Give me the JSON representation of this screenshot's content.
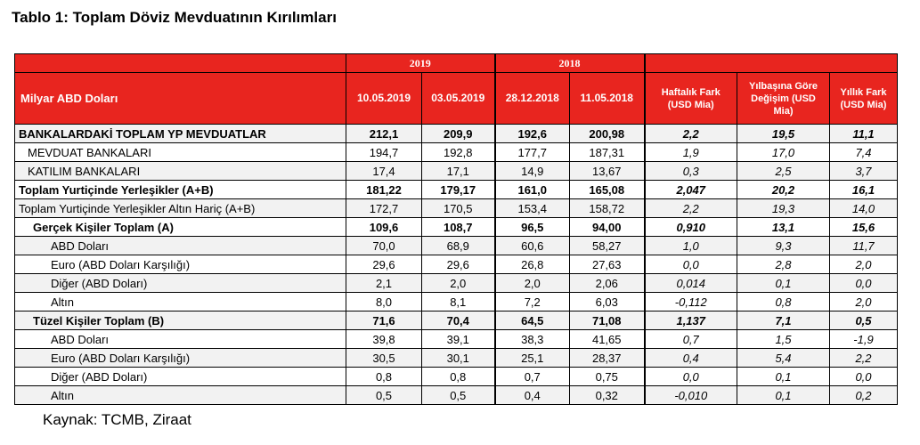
{
  "title": "Tablo 1: Toplam Döviz Mevduatının Kırılımları",
  "source": "Kaynak: TCMB, Ziraat",
  "header": {
    "unit_label": "Milyar ABD Doları",
    "year_2019": "2019",
    "year_2018": "2018",
    "dates": [
      "10.05.2019",
      "03.05.2019",
      "28.12.2018",
      "11.05.2018"
    ],
    "weekly": "Haftalık Fark (USD Mia)",
    "ytd": "Yılbaşına Göre Değişim (USD Mia)",
    "yearly": "Yıllık Fark (USD Mia)"
  },
  "rows": [
    {
      "label": "BANKALARDAKİ TOPLAM YP MEVDUATLAR",
      "values": [
        "212,1",
        "209,9",
        "192,6",
        "200,98"
      ],
      "changes": [
        "2,2",
        "19,5",
        "11,1"
      ],
      "bold": true,
      "indent": 0
    },
    {
      "label": "MEVDUAT BANKALARI",
      "values": [
        "194,7",
        "192,8",
        "177,7",
        "187,31"
      ],
      "changes": [
        "1,9",
        "17,0",
        "7,4"
      ],
      "bold": false,
      "indent": 1
    },
    {
      "label": "KATILIM BANKALARI",
      "values": [
        "17,4",
        "17,1",
        "14,9",
        "13,67"
      ],
      "changes": [
        "0,3",
        "2,5",
        "3,7"
      ],
      "bold": false,
      "indent": 1
    },
    {
      "label": "Toplam Yurtiçinde Yerleşikler (A+B)",
      "values": [
        "181,22",
        "179,17",
        "161,0",
        "165,08"
      ],
      "changes": [
        "2,047",
        "20,2",
        "16,1"
      ],
      "bold": true,
      "indent": 0
    },
    {
      "label": "Toplam Yurtiçinde Yerleşikler Altın Hariç (A+B)",
      "values": [
        "172,7",
        "170,5",
        "153,4",
        "158,72"
      ],
      "changes": [
        "2,2",
        "19,3",
        "14,0"
      ],
      "bold": false,
      "indent": 0
    },
    {
      "label": "Gerçek Kişiler Toplam (A)",
      "values": [
        "109,6",
        "108,7",
        "96,5",
        "94,00"
      ],
      "changes": [
        "0,910",
        "13,1",
        "15,6"
      ],
      "bold": true,
      "indent": 2
    },
    {
      "label": "ABD Doları",
      "values": [
        "70,0",
        "68,9",
        "60,6",
        "58,27"
      ],
      "changes": [
        "1,0",
        "9,3",
        "11,7"
      ],
      "bold": false,
      "indent": 3
    },
    {
      "label": "Euro (ABD Doları Karşılığı)",
      "values": [
        "29,6",
        "29,6",
        "26,8",
        "27,63"
      ],
      "changes": [
        "0,0",
        "2,8",
        "2,0"
      ],
      "bold": false,
      "indent": 3
    },
    {
      "label": "Diğer (ABD Doları)",
      "values": [
        "2,1",
        "2,0",
        "2,0",
        "2,06"
      ],
      "changes": [
        "0,014",
        "0,1",
        "0,0"
      ],
      "bold": false,
      "indent": 3
    },
    {
      "label": "Altın",
      "values": [
        "8,0",
        "8,1",
        "7,2",
        "6,03"
      ],
      "changes": [
        "-0,112",
        "0,8",
        "2,0"
      ],
      "bold": false,
      "indent": 3
    },
    {
      "label": "Tüzel Kişiler Toplam (B)",
      "values": [
        "71,6",
        "70,4",
        "64,5",
        "71,08"
      ],
      "changes": [
        "1,137",
        "7,1",
        "0,5"
      ],
      "bold": true,
      "indent": 2
    },
    {
      "label": "ABD Doları",
      "values": [
        "39,8",
        "39,1",
        "38,3",
        "41,65"
      ],
      "changes": [
        "0,7",
        "1,5",
        "-1,9"
      ],
      "bold": false,
      "indent": 3
    },
    {
      "label": "Euro (ABD Doları Karşılığı)",
      "values": [
        "30,5",
        "30,1",
        "25,1",
        "28,37"
      ],
      "changes": [
        "0,4",
        "5,4",
        "2,2"
      ],
      "bold": false,
      "indent": 3
    },
    {
      "label": "Diğer (ABD Doları)",
      "values": [
        "0,8",
        "0,8",
        "0,7",
        "0,75"
      ],
      "changes": [
        "0,0",
        "0,1",
        "0,0"
      ],
      "bold": false,
      "indent": 3
    },
    {
      "label": "Altın",
      "values": [
        "0,5",
        "0,5",
        "0,4",
        "0,32"
      ],
      "changes": [
        "-0,010",
        "0,1",
        "0,2"
      ],
      "bold": false,
      "indent": 3
    }
  ]
}
